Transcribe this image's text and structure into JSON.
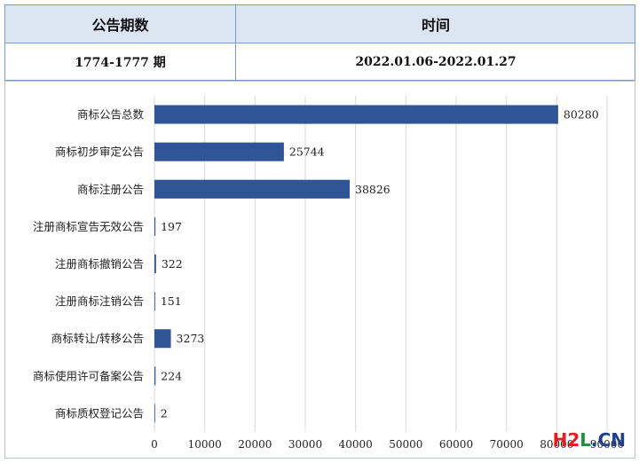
{
  "table": {
    "header_col1": "公告期数",
    "header_col2": "时间",
    "value_col1": "1774-1777 期",
    "value_col2": "2022.01.06-2022.01.27"
  },
  "chart_data": {
    "type": "bar",
    "orientation": "horizontal",
    "categories": [
      "商标公告总数",
      "商标初步审定公告",
      "商标注册公告",
      "注册商标宣告无效公告",
      "注册商标撤销公告",
      "注册商标注销公告",
      "商标转让/转移公告",
      "商标使用许可备案公告",
      "商标质权登记公告"
    ],
    "values": [
      80280,
      25744,
      38826,
      197,
      322,
      151,
      3273,
      224,
      2
    ],
    "value_labels": [
      "80280",
      "25744",
      "38826",
      "197",
      "322",
      "151",
      "3273",
      "224",
      "2"
    ],
    "xticks": [
      0,
      10000,
      20000,
      30000,
      40000,
      50000,
      60000,
      70000,
      80000,
      90000
    ],
    "xtick_labels": [
      "0",
      "10000",
      "20000",
      "30000",
      "40000",
      "50000",
      "60000",
      "70000",
      "80000",
      "90000"
    ],
    "xlim": [
      0,
      90000
    ],
    "grid": true,
    "bar_color": "#2f5597",
    "grid_color": "#d9d9d9"
  },
  "watermark": {
    "part1": "H2",
    "part2": "L",
    "part3": ".CN"
  }
}
